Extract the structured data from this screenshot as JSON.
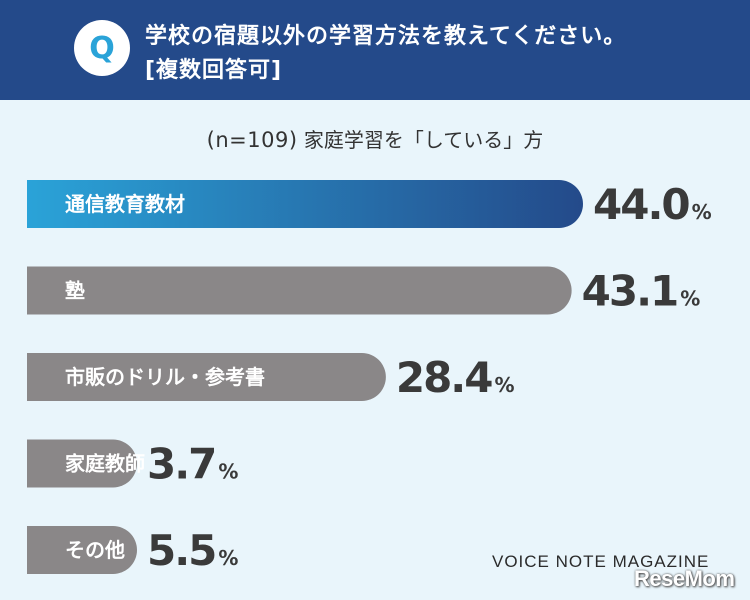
{
  "header": {
    "badge": "Q",
    "question_line1": "学校の宿題以外の学習方法を教えてください。",
    "question_line2": "[複数回答可]"
  },
  "subtitle": {
    "sample": "(n=109)",
    "text": "家庭学習を「している」方"
  },
  "colors": {
    "header_bg": "#244a8a",
    "highlight_start": "#2aa3d8",
    "highlight_end": "#244a8a",
    "bar_gray": "#8a8788",
    "background": "#e9f5fb"
  },
  "chart_data": {
    "type": "bar",
    "orientation": "horizontal",
    "categories": [
      "通信教育教材",
      "塾",
      "市販のドリル・参考書",
      "家庭教師",
      "その他"
    ],
    "values": [
      44.0,
      43.1,
      28.4,
      3.7,
      5.5
    ],
    "value_labels": [
      "44.0",
      "43.1",
      "28.4",
      "3.7",
      "5.5"
    ],
    "unit": "%",
    "highlight_index": 0,
    "xlim": [
      0,
      44.0
    ]
  },
  "footer": {
    "brand": "VOICE NOTE MAGAZINE",
    "logo": "ReseMom"
  }
}
